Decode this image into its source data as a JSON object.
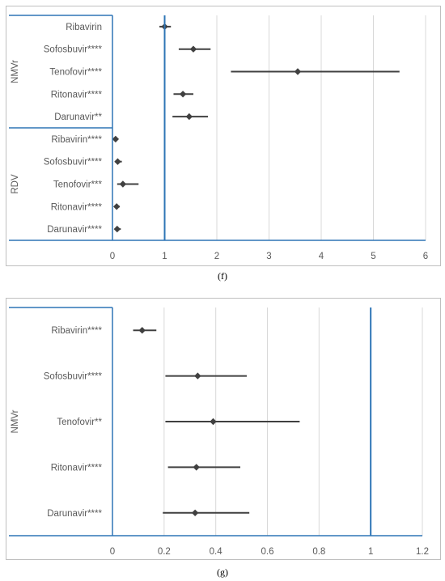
{
  "chart_data": [
    {
      "type": "scatter",
      "subtype": "forest-plot",
      "panel_label": "(f)",
      "xlim": [
        0,
        6
      ],
      "xticks": [
        "0",
        "1",
        "2",
        "3",
        "4",
        "5",
        "6"
      ],
      "reference_line": 1,
      "grid": "vertical",
      "groups": [
        {
          "label": "NMVr",
          "rows": [
            {
              "label": "Ribavirin",
              "value": 1.0,
              "ci_low": 0.9,
              "ci_high": 1.12
            },
            {
              "label": "Sofosbuvir****",
              "value": 1.55,
              "ci_low": 1.27,
              "ci_high": 1.88
            },
            {
              "label": "Tenofovir****",
              "value": 3.55,
              "ci_low": 2.27,
              "ci_high": 5.5
            },
            {
              "label": "Ritonavir****",
              "value": 1.35,
              "ci_low": 1.17,
              "ci_high": 1.55
            },
            {
              "label": "Darunavir**",
              "value": 1.47,
              "ci_low": 1.15,
              "ci_high": 1.83
            }
          ]
        },
        {
          "label": "RDV",
          "rows": [
            {
              "label": "Ribavirin****",
              "value": 0.06,
              "ci_low": 0.03,
              "ci_high": 0.1
            },
            {
              "label": "Sofosbuvir****",
              "value": 0.1,
              "ci_low": 0.05,
              "ci_high": 0.18
            },
            {
              "label": "Tenofovir***",
              "value": 0.2,
              "ci_low": 0.09,
              "ci_high": 0.5
            },
            {
              "label": "Ritonavir****",
              "value": 0.08,
              "ci_low": 0.04,
              "ci_high": 0.14
            },
            {
              "label": "Darunavir****",
              "value": 0.09,
              "ci_low": 0.04,
              "ci_high": 0.16
            }
          ]
        }
      ]
    },
    {
      "type": "scatter",
      "subtype": "forest-plot",
      "panel_label": "(g)",
      "xlim": [
        0,
        1.2
      ],
      "xticks": [
        "0",
        "0.2",
        "0.4",
        "0.6",
        "0.8",
        "1",
        "1.2"
      ],
      "reference_line": 1,
      "grid": "vertical",
      "groups": [
        {
          "label": "NMVr",
          "rows": [
            {
              "label": "Ribavirin****",
              "value": 0.115,
              "ci_low": 0.08,
              "ci_high": 0.17
            },
            {
              "label": "Sofosbuvir****",
              "value": 0.33,
              "ci_low": 0.205,
              "ci_high": 0.52
            },
            {
              "label": "Tenofovir**",
              "value": 0.39,
              "ci_low": 0.205,
              "ci_high": 0.725
            },
            {
              "label": "Ritonavir****",
              "value": 0.325,
              "ci_low": 0.215,
              "ci_high": 0.495
            },
            {
              "label": "Darunavir****",
              "value": 0.32,
              "ci_low": 0.195,
              "ci_high": 0.53
            }
          ]
        }
      ]
    }
  ],
  "colors": {
    "axis": "#2e75b6",
    "marker": "#404040",
    "whisker": "#404040",
    "grid": "#d9d9d9",
    "text": "#595959"
  }
}
